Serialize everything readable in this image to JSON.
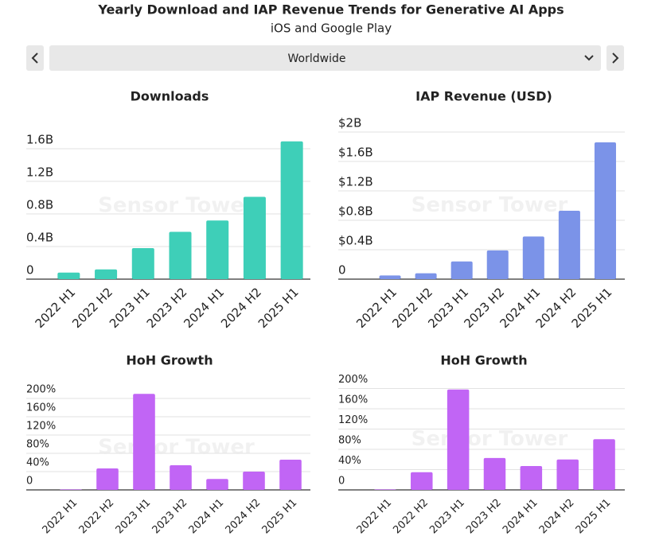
{
  "header": {
    "title": "Yearly Download and IAP Revenue Trends for Generative AI Apps",
    "subtitle": "iOS and Google Play",
    "selector": "Worldwide",
    "watermark": "Sensor Tower"
  },
  "chart_data": [
    {
      "type": "bar",
      "title": "Downloads",
      "color": "#3ecfb8",
      "categories": [
        "2022 H1",
        "2022 H2",
        "2023 H1",
        "2023 H2",
        "2024 H1",
        "2024 H2",
        "2025 H1"
      ],
      "values": [
        0.08,
        0.12,
        0.38,
        0.58,
        0.72,
        1.01,
        1.69
      ],
      "ylim": [
        0,
        1.8
      ],
      "yticks": [
        0,
        {
          "value": 0.4,
          "label": "0.4B"
        },
        {
          "value": 0.8,
          "label": "0.8B"
        },
        {
          "value": 1.2,
          "label": "1.2B"
        },
        {
          "value": 1.6,
          "label": "1.6B"
        }
      ],
      "grid": true
    },
    {
      "type": "bar",
      "title": "IAP Revenue (USD)",
      "color": "#7b93e8",
      "categories": [
        "2022 H1",
        "2022 H2",
        "2023 H1",
        "2023 H2",
        "2024 H1",
        "2024 H2",
        "2025 H1"
      ],
      "values": [
        0.05,
        0.08,
        0.24,
        0.39,
        0.58,
        0.93,
        1.86
      ],
      "ylim": [
        0,
        2
      ],
      "yticks": [
        0,
        {
          "value": 0.4,
          "label": "$0.4B"
        },
        {
          "value": 0.8,
          "label": "$0.8B"
        },
        {
          "value": 1.2,
          "label": "$1.2B"
        },
        {
          "value": 1.6,
          "label": "$1.6B"
        },
        {
          "value": 2,
          "label": "$2B"
        }
      ],
      "grid": true
    },
    {
      "type": "bar",
      "title": "HoH Growth",
      "color": "#c165f5",
      "categories": [
        "2022 H1",
        "2022 H2",
        "2023 H1",
        "2023 H2",
        "2024 H1",
        "2024 H2",
        "2025 H1"
      ],
      "values": [
        1,
        47,
        210,
        54,
        24,
        40,
        66
      ],
      "ylim": [
        0,
        220
      ],
      "yticks": [
        0,
        {
          "value": 40,
          "label": "40%"
        },
        {
          "value": 80,
          "label": "80%"
        },
        {
          "value": 120,
          "label": "120%"
        },
        {
          "value": 160,
          "label": "160%"
        },
        {
          "value": 200,
          "label": "200%"
        }
      ],
      "grid": true
    },
    {
      "type": "bar",
      "title": "HoH Growth",
      "color": "#c165f5",
      "categories": [
        "2022 H1",
        "2022 H2",
        "2023 H1",
        "2023 H2",
        "2024 H1",
        "2024 H2",
        "2025 H1"
      ],
      "values": [
        1,
        35,
        198,
        63,
        47,
        60,
        100
      ],
      "ylim": [
        0,
        230
      ],
      "yticks": [
        0,
        {
          "value": 40,
          "label": "40%"
        },
        {
          "value": 80,
          "label": "80%"
        },
        {
          "value": 120,
          "label": "120%"
        },
        {
          "value": 160,
          "label": "160%"
        },
        {
          "value": 200,
          "label": "200%"
        }
      ],
      "grid": true
    }
  ]
}
